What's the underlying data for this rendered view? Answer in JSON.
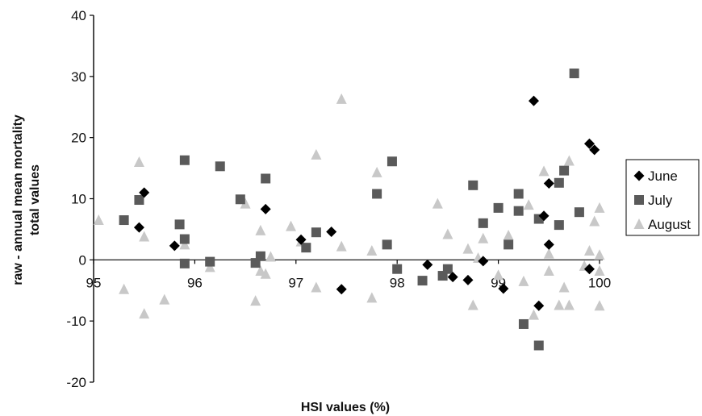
{
  "chart_data": {
    "type": "scatter",
    "title": "",
    "xlabel": "HSI values (%)",
    "ylabel_lines": [
      "raw - annual mean mortality",
      "total values"
    ],
    "xlim": [
      95,
      100
    ],
    "ylim": [
      -20,
      40
    ],
    "x_ticks": [
      95,
      96,
      97,
      98,
      99,
      100
    ],
    "y_ticks": [
      -20,
      -10,
      0,
      10,
      20,
      30,
      40
    ],
    "x_tick_labels": [
      "95",
      "96",
      "97",
      "98",
      "99",
      "100"
    ],
    "y_tick_labels": [
      "-20",
      "-10",
      "0",
      "10",
      "20",
      "30",
      "40"
    ],
    "grid": false,
    "legend_position": "right",
    "series": [
      {
        "name": "June",
        "marker": "diamond",
        "color": "#000000",
        "points": [
          [
            95.45,
            5.3
          ],
          [
            95.5,
            11.0
          ],
          [
            95.8,
            2.3
          ],
          [
            96.7,
            8.3
          ],
          [
            97.05,
            3.3
          ],
          [
            97.35,
            4.6
          ],
          [
            97.45,
            -4.8
          ],
          [
            98.3,
            -0.8
          ],
          [
            98.55,
            -2.8
          ],
          [
            98.7,
            -3.3
          ],
          [
            98.85,
            -0.2
          ],
          [
            99.05,
            -4.7
          ],
          [
            99.35,
            26.0
          ],
          [
            99.4,
            -7.5
          ],
          [
            99.45,
            7.2
          ],
          [
            99.5,
            12.5
          ],
          [
            99.5,
            2.5
          ],
          [
            99.9,
            19.0
          ],
          [
            99.95,
            18.0
          ],
          [
            99.9,
            -1.5
          ]
        ]
      },
      {
        "name": "July",
        "marker": "square",
        "color": "#5a5a5a",
        "points": [
          [
            95.3,
            6.5
          ],
          [
            95.45,
            9.8
          ],
          [
            95.85,
            5.8
          ],
          [
            95.9,
            16.3
          ],
          [
            95.9,
            3.4
          ],
          [
            95.9,
            -0.6
          ],
          [
            96.15,
            -0.3
          ],
          [
            96.25,
            15.3
          ],
          [
            96.45,
            9.9
          ],
          [
            96.6,
            -0.5
          ],
          [
            96.65,
            0.6
          ],
          [
            96.7,
            13.3
          ],
          [
            97.1,
            2.0
          ],
          [
            97.2,
            4.5
          ],
          [
            97.8,
            10.8
          ],
          [
            97.9,
            2.5
          ],
          [
            97.95,
            16.1
          ],
          [
            98.0,
            -1.5
          ],
          [
            98.25,
            -3.4
          ],
          [
            98.45,
            -2.6
          ],
          [
            98.5,
            -1.5
          ],
          [
            98.75,
            12.2
          ],
          [
            98.85,
            6.0
          ],
          [
            99.0,
            8.5
          ],
          [
            99.1,
            2.5
          ],
          [
            99.2,
            10.8
          ],
          [
            99.2,
            8.0
          ],
          [
            99.25,
            -10.5
          ],
          [
            99.4,
            6.7
          ],
          [
            99.4,
            -14.0
          ],
          [
            99.6,
            12.6
          ],
          [
            99.6,
            5.7
          ],
          [
            99.65,
            14.6
          ],
          [
            99.75,
            30.5
          ],
          [
            99.8,
            7.8
          ]
        ]
      },
      {
        "name": "August",
        "marker": "triangle",
        "color": "#c8c8c8",
        "points": [
          [
            95.05,
            6.5
          ],
          [
            95.3,
            -4.8
          ],
          [
            95.45,
            16.0
          ],
          [
            95.5,
            3.8
          ],
          [
            95.5,
            -8.8
          ],
          [
            95.7,
            -6.5
          ],
          [
            95.9,
            2.5
          ],
          [
            96.15,
            -1.2
          ],
          [
            96.5,
            9.2
          ],
          [
            96.6,
            -6.7
          ],
          [
            96.65,
            4.8
          ],
          [
            96.65,
            -1.8
          ],
          [
            96.7,
            -2.3
          ],
          [
            96.75,
            0.5
          ],
          [
            96.95,
            5.5
          ],
          [
            97.05,
            3.0
          ],
          [
            97.2,
            17.2
          ],
          [
            97.2,
            -4.5
          ],
          [
            97.45,
            26.3
          ],
          [
            97.45,
            2.2
          ],
          [
            97.75,
            1.5
          ],
          [
            97.75,
            -6.2
          ],
          [
            97.8,
            14.3
          ],
          [
            98.4,
            9.2
          ],
          [
            98.5,
            4.2
          ],
          [
            98.7,
            1.8
          ],
          [
            98.75,
            -7.4
          ],
          [
            98.8,
            0.3
          ],
          [
            98.85,
            3.5
          ],
          [
            99.0,
            -2.5
          ],
          [
            99.1,
            4.0
          ],
          [
            99.25,
            -3.5
          ],
          [
            99.3,
            9.0
          ],
          [
            99.35,
            -9.0
          ],
          [
            99.45,
            14.5
          ],
          [
            99.5,
            1.0
          ],
          [
            99.5,
            -1.8
          ],
          [
            99.6,
            -7.4
          ],
          [
            99.65,
            -4.5
          ],
          [
            99.7,
            16.2
          ],
          [
            99.7,
            -7.4
          ],
          [
            99.85,
            -1.0
          ],
          [
            99.9,
            1.5
          ],
          [
            99.95,
            6.3
          ],
          [
            100.0,
            8.5
          ],
          [
            100.0,
            0.8
          ],
          [
            100.0,
            -7.5
          ],
          [
            100.0,
            -1.8
          ]
        ]
      }
    ]
  }
}
